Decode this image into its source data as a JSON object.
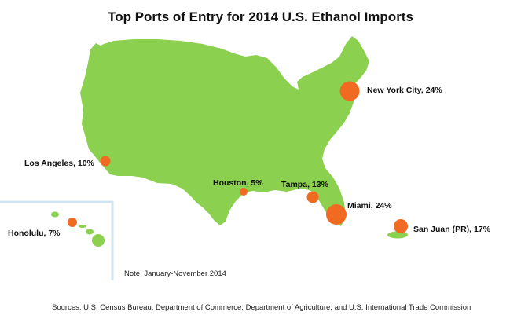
{
  "title": "Top Ports of Entry for 2014 U.S. Ethanol Imports",
  "note": "Note: January-November 2014",
  "sources": "Sources: U.S. Census Bureau, Department of Commerce, Department of Agriculture, and U.S. International Trade Commission",
  "colors": {
    "land": "#8cd050",
    "port_marker": "#f06a22",
    "inset_border": "#cfe6f2"
  },
  "ports": [
    {
      "id": "new-york-city",
      "label": "New York City, 24%",
      "share_pct": 24
    },
    {
      "id": "los-angeles",
      "label": "Los Angeles, 10%",
      "share_pct": 10
    },
    {
      "id": "houston",
      "label": "Houston, 5%",
      "share_pct": 5
    },
    {
      "id": "tampa",
      "label": "Tampa, 13%",
      "share_pct": 13
    },
    {
      "id": "miami",
      "label": "Miami, 24%",
      "share_pct": 24
    },
    {
      "id": "san-juan",
      "label": "San Juan (PR), 17%",
      "share_pct": 17
    },
    {
      "id": "honolulu",
      "label": "Honolulu, 7%",
      "share_pct": 7
    }
  ]
}
